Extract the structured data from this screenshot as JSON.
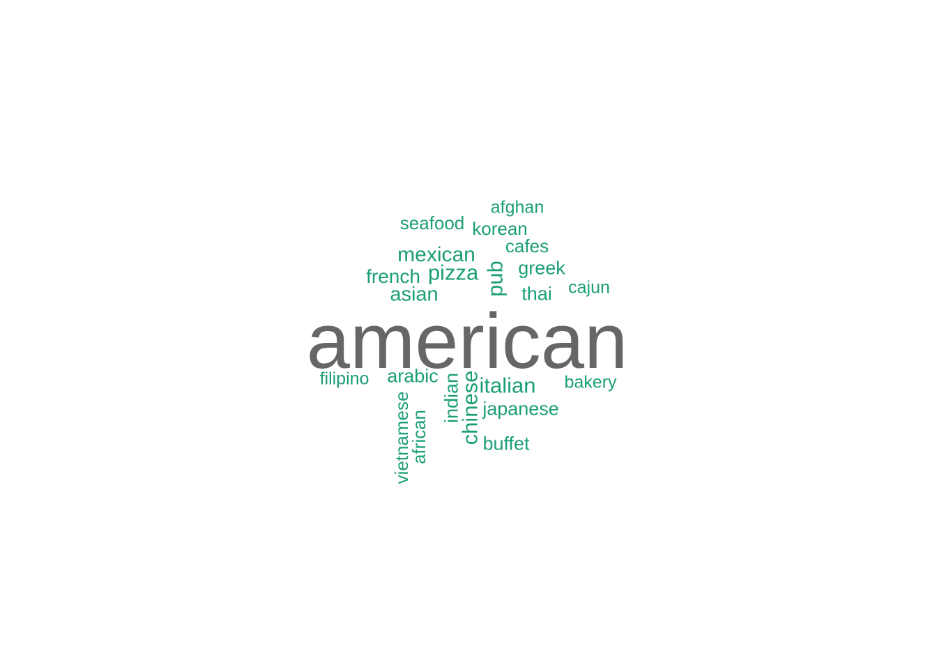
{
  "colors": {
    "background": "#ffffff",
    "primary_word": "#666666",
    "secondary_words": "#1b9e77"
  },
  "words": {
    "american": "american",
    "afghan": "afghan",
    "seafood": "seafood",
    "korean": "korean",
    "cafes": "cafes",
    "mexican": "mexican",
    "greek": "greek",
    "french": "french",
    "pizza": "pizza",
    "pub": "pub",
    "cajun": "cajun",
    "asian": "asian",
    "thai": "thai",
    "filipino": "filipino",
    "arabic": "arabic",
    "italian": "italian",
    "bakery": "bakery",
    "indian": "indian",
    "chinese": "chinese",
    "japanese": "japanese",
    "vietnamese": "vietnamese",
    "african": "african",
    "buffet": "buffet"
  }
}
